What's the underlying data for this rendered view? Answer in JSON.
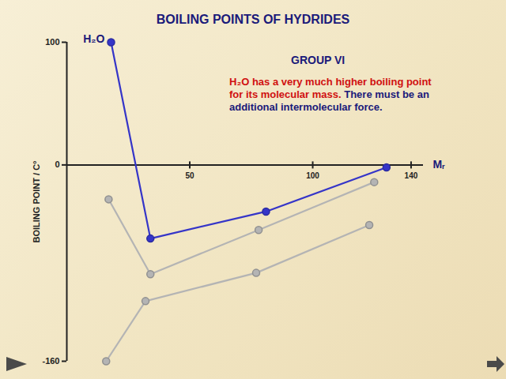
{
  "chart_data": {
    "type": "line",
    "title": "BOILING POINTS OF HYDRIDES",
    "xlabel": "Mᵣ",
    "ylabel": "BOILING POINT / C°",
    "xlim": [
      0,
      145
    ],
    "xticks": [
      50,
      100,
      140
    ],
    "ylim": [
      -160,
      100
    ],
    "yticks": [
      -160,
      0,
      100
    ],
    "annotations": [
      {
        "text": "GROUP VI",
        "color": "#1a1a7a"
      },
      {
        "text": "H₂O has a very much higher boiling point for its molecular mass.",
        "color": "#d01010"
      },
      {
        "text": "There must be an additional intermolecular force.",
        "color": "#1a1a7a"
      }
    ],
    "series": [
      {
        "color": "#3535c8",
        "marker": "circle",
        "x": [
          18,
          34,
          81,
          130
        ],
        "values": [
          100,
          -60,
          -38,
          -2
        ],
        "labels": [
          "H₂O",
          null,
          null,
          null
        ]
      },
      {
        "color": "#b4b4b4",
        "marker": "circle",
        "x": [
          17,
          34,
          78,
          125
        ],
        "values": [
          -28,
          -89,
          -53,
          -14
        ]
      },
      {
        "color": "#b4b4b4",
        "marker": "circle",
        "x": [
          16,
          32,
          77,
          123
        ],
        "values": [
          -160,
          -111,
          -88,
          -49
        ]
      }
    ]
  }
}
